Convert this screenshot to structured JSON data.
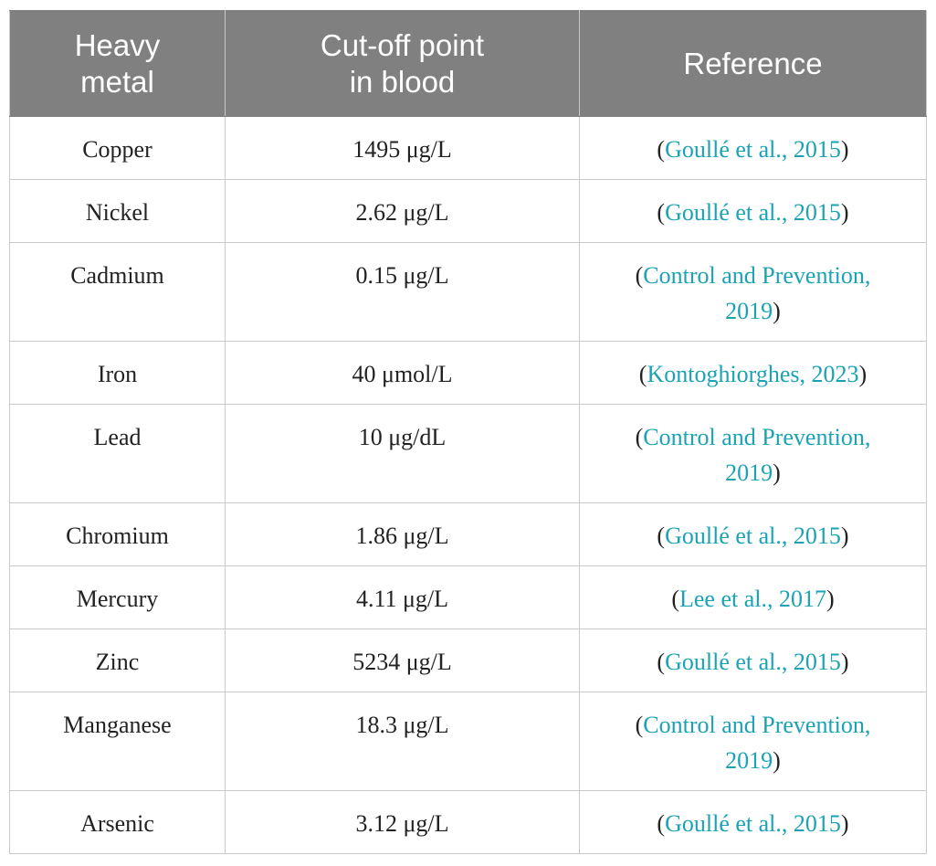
{
  "table": {
    "headers": [
      "Heavy\nmetal",
      "Cut-off point\nin blood",
      "Reference"
    ],
    "rows": [
      {
        "metal": "Copper",
        "cutoff": "1495 μg/L",
        "reference": "Goullé et al., 2015",
        "lines": 1
      },
      {
        "metal": "Nickel",
        "cutoff": "2.62 μg/L",
        "reference": "Goullé et al., 2015",
        "lines": 1
      },
      {
        "metal": "Cadmium",
        "cutoff": "0.15 μg/L",
        "reference": "Control and Prevention, 2019",
        "lines": 2
      },
      {
        "metal": "Iron",
        "cutoff": "40 μmol/L",
        "reference": "Kontoghiorghes, 2023",
        "lines": 1
      },
      {
        "metal": "Lead",
        "cutoff": "10 μg/dL",
        "reference": "Control and Prevention, 2019",
        "lines": 2
      },
      {
        "metal": "Chromium",
        "cutoff": "1.86 μg/L",
        "reference": "Goullé et al., 2015",
        "lines": 1
      },
      {
        "metal": "Mercury",
        "cutoff": "4.11 μg/L",
        "reference": "Lee et al., 2017",
        "lines": 1
      },
      {
        "metal": "Zinc",
        "cutoff": "5234 μg/L",
        "reference": "Goullé et al., 2015",
        "lines": 1
      },
      {
        "metal": "Manganese",
        "cutoff": "18.3 μg/L",
        "reference": "Control and Prevention, 2019",
        "lines": 2
      },
      {
        "metal": "Arsenic",
        "cutoff": "3.12 μg/L",
        "reference": "Goullé et al., 2015",
        "lines": 1
      }
    ]
  },
  "colors": {
    "header_bg": "#808080",
    "header_text": "#ffffff",
    "link": "#1aa3b5",
    "border": "#c9c9c9"
  }
}
